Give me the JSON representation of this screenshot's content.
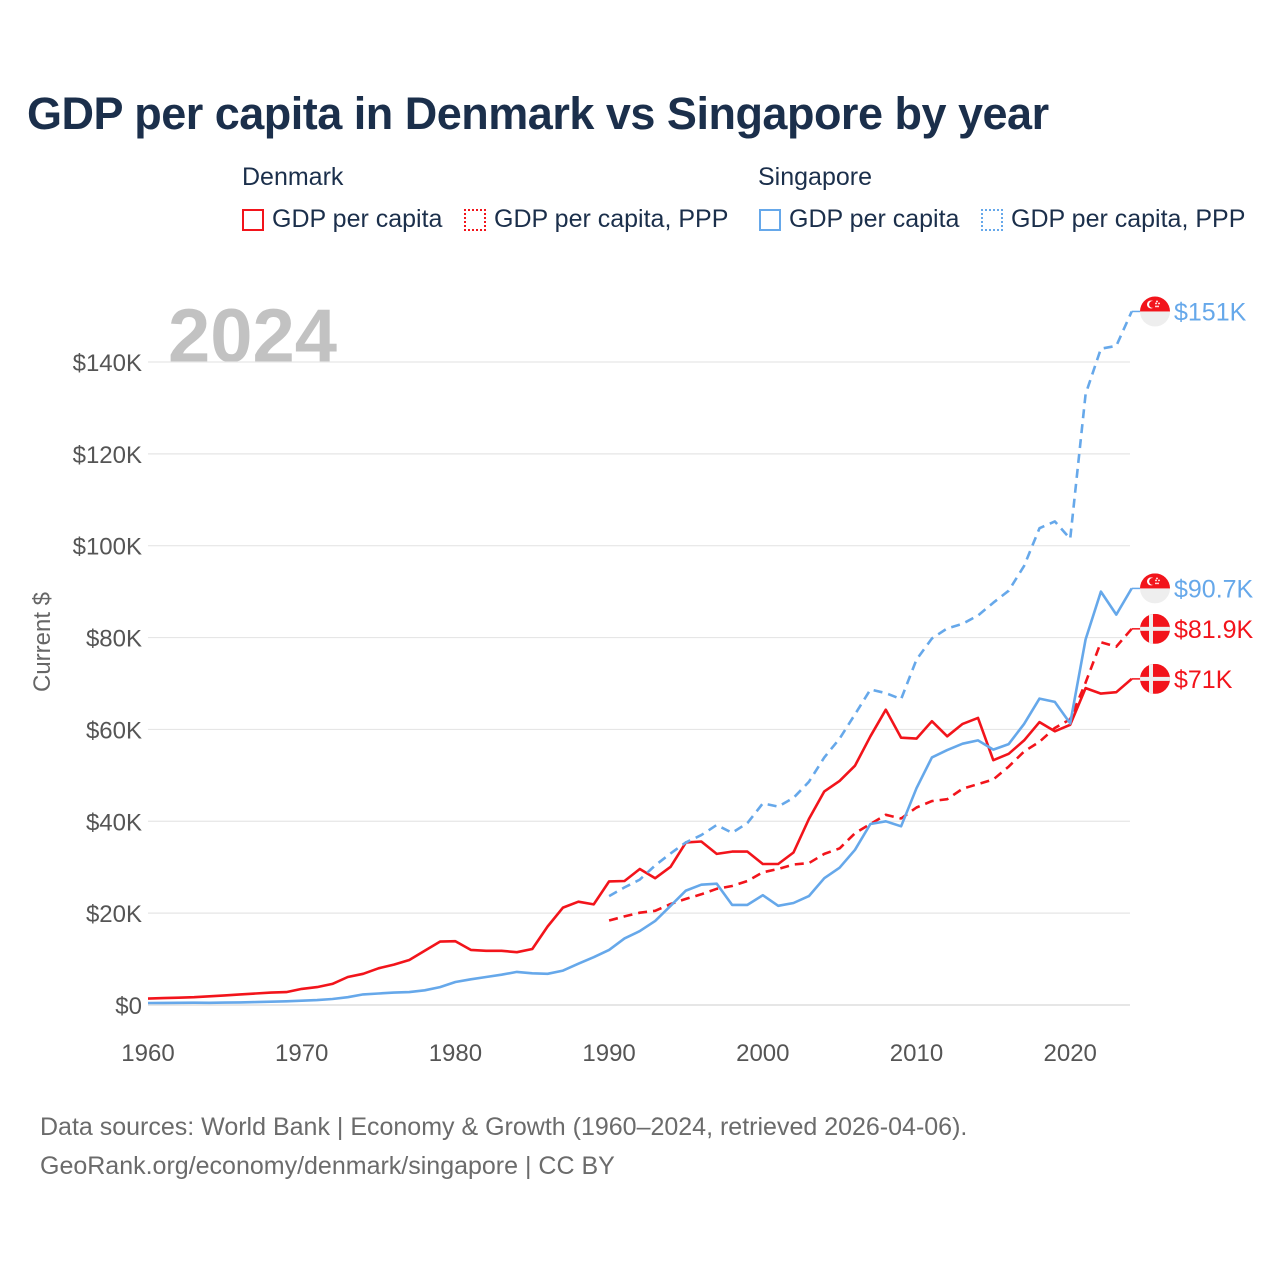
{
  "title": "GDP per capita in Denmark vs Singapore by year",
  "legend": {
    "groups": [
      {
        "name": "Denmark",
        "items": [
          "GDP per capita",
          "GDP per capita, PPP"
        ]
      },
      {
        "name": "Singapore",
        "items": [
          "GDP per capita",
          "GDP per capita, PPP"
        ]
      }
    ]
  },
  "footer": {
    "line1": "Data sources: World Bank | Economy & Growth (1960–2024, retrieved 2026-04-06).",
    "line2": "GeoRank.org/economy/denmark/singapore | CC BY"
  },
  "colors": {
    "denmark": "#f2141b",
    "singapore": "#66a8ea",
    "grid": "#e6e6e6",
    "axis_text": "#555555",
    "year_watermark": "#c2c2c2"
  },
  "chart_data": {
    "type": "line",
    "year_label": "2024",
    "ylabel": "Current $",
    "xlim": [
      1960,
      2024
    ],
    "ylim": [
      0,
      150000
    ],
    "x_ticks": [
      1960,
      1970,
      1980,
      1990,
      2000,
      2010,
      2020
    ],
    "y_ticks": [
      {
        "v": 0,
        "label": "$0"
      },
      {
        "v": 20000,
        "label": "$20K"
      },
      {
        "v": 40000,
        "label": "$40K"
      },
      {
        "v": 60000,
        "label": "$60K"
      },
      {
        "v": 80000,
        "label": "$80K"
      },
      {
        "v": 100000,
        "label": "$100K"
      },
      {
        "v": 120000,
        "label": "$120K"
      },
      {
        "v": 140000,
        "label": "$140K"
      }
    ],
    "grid": true,
    "series": [
      {
        "name": "Denmark GDP per capita",
        "country": "denmark",
        "dashed": false,
        "start": 1960,
        "end_label": "$71K",
        "values_k": [
          1.4,
          1.5,
          1.6,
          1.7,
          1.9,
          2.1,
          2.3,
          2.5,
          2.7,
          2.8,
          3.5,
          3.9,
          4.6,
          6.1,
          6.8,
          8.0,
          8.8,
          9.8,
          11.8,
          13.8,
          13.9,
          12.0,
          11.8,
          11.8,
          11.5,
          12.2,
          17.1,
          21.2,
          22.5,
          21.9,
          26.9,
          27.0,
          29.6,
          27.6,
          30.1,
          35.4,
          35.6,
          32.9,
          33.4,
          33.4,
          30.7,
          30.7,
          33.2,
          40.5,
          46.5,
          48.8,
          52.1,
          58.5,
          64.3,
          58.2,
          58.0,
          61.8,
          58.5,
          61.2,
          62.5,
          53.3,
          54.7,
          57.6,
          61.6,
          59.6,
          61.0,
          69.0,
          67.8,
          68.1,
          71.0
        ]
      },
      {
        "name": "Denmark GDP per capita, PPP",
        "country": "denmark",
        "dashed": true,
        "start": 1990,
        "end_label": "$81.9K",
        "values_k": [
          18.4,
          19.3,
          20.1,
          20.5,
          22.0,
          23.1,
          24.1,
          25.3,
          25.9,
          27.0,
          28.9,
          29.6,
          30.6,
          30.9,
          32.9,
          34.1,
          37.4,
          39.4,
          41.4,
          40.6,
          43.0,
          44.4,
          44.8,
          47.1,
          48.1,
          49.1,
          51.9,
          55.2,
          57.3,
          60.3,
          62.2,
          70.2,
          79.0,
          78.0,
          81.9
        ]
      },
      {
        "name": "Singapore GDP per capita",
        "country": "singapore",
        "dashed": false,
        "start": 1960,
        "end_label": "$90.7K",
        "values_k": [
          0.43,
          0.45,
          0.47,
          0.5,
          0.48,
          0.52,
          0.57,
          0.63,
          0.71,
          0.81,
          0.93,
          1.07,
          1.3,
          1.7,
          2.3,
          2.5,
          2.7,
          2.8,
          3.2,
          3.9,
          5.0,
          5.6,
          6.1,
          6.6,
          7.2,
          6.9,
          6.8,
          7.5,
          9.0,
          10.4,
          12.0,
          14.5,
          16.1,
          18.3,
          21.6,
          24.9,
          26.2,
          26.4,
          21.8,
          21.8,
          23.9,
          21.6,
          22.2,
          23.7,
          27.6,
          29.9,
          33.8,
          39.4,
          40.0,
          38.9,
          47.2,
          53.9,
          55.5,
          56.9,
          57.6,
          55.6,
          56.8,
          61.2,
          66.7,
          66.0,
          61.3,
          79.6,
          90.0,
          85.0,
          90.7
        ]
      },
      {
        "name": "Singapore GDP per capita, PPP",
        "country": "singapore",
        "dashed": true,
        "start": 1990,
        "end_label": "$151K",
        "values_k": [
          23.7,
          25.6,
          27.3,
          30.4,
          33.0,
          35.4,
          37.0,
          39.2,
          37.5,
          39.6,
          43.9,
          43.2,
          45.1,
          48.6,
          53.9,
          58.0,
          63.3,
          68.7,
          67.9,
          66.6,
          75.2,
          79.8,
          82.0,
          83.0,
          84.8,
          87.6,
          90.2,
          95.6,
          103.8,
          105.3,
          101.5,
          133.0,
          142.9,
          143.5,
          151.0
        ]
      }
    ]
  }
}
